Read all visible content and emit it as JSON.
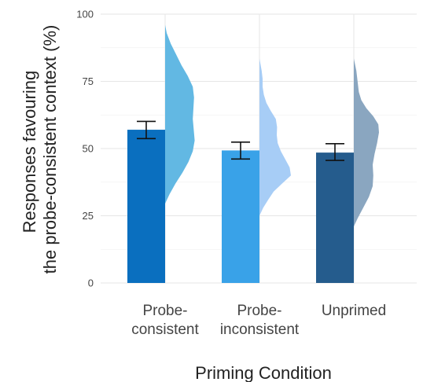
{
  "chart_data": {
    "type": "bar",
    "xlabel": "Priming Condition",
    "ylabel_lines": [
      "Responses favouring",
      "the probe-consistent context (%)"
    ],
    "ylim": [
      0,
      100
    ],
    "yticks": [
      0,
      25,
      50,
      75,
      100
    ],
    "grid": true,
    "categories": [
      {
        "label_lines": [
          "Probe-",
          "consistent"
        ],
        "value": 57,
        "error_low": 53.7,
        "error_high": 60.1,
        "color": "#0a6fbf",
        "dist_color": "#62b8e3",
        "distribution": [
          [
            29.5,
            0
          ],
          [
            33,
            0.14
          ],
          [
            37,
            0.33
          ],
          [
            41,
            0.55
          ],
          [
            45,
            0.74
          ],
          [
            49,
            0.88
          ],
          [
            53,
            0.94
          ],
          [
            57,
            0.91
          ],
          [
            61,
            0.88
          ],
          [
            65,
            0.9
          ],
          [
            69,
            0.92
          ],
          [
            73,
            0.88
          ],
          [
            77,
            0.72
          ],
          [
            81,
            0.52
          ],
          [
            85,
            0.35
          ],
          [
            89,
            0.18
          ],
          [
            93,
            0.05
          ],
          [
            96,
            0
          ]
        ]
      },
      {
        "label_lines": [
          "Probe-",
          "inconsistent"
        ],
        "value": 49.3,
        "error_low": 46.1,
        "error_high": 52.4,
        "color": "#39a2e8",
        "dist_color": "#a7cdf6",
        "distribution": [
          [
            25,
            0
          ],
          [
            28,
            0.12
          ],
          [
            31,
            0.28
          ],
          [
            34,
            0.45
          ],
          [
            37,
            0.72
          ],
          [
            40,
            1.0
          ],
          [
            43,
            0.96
          ],
          [
            46,
            0.82
          ],
          [
            49,
            0.68
          ],
          [
            52,
            0.58
          ],
          [
            55,
            0.55
          ],
          [
            58,
            0.56
          ],
          [
            61,
            0.52
          ],
          [
            64,
            0.36
          ],
          [
            67,
            0.22
          ],
          [
            70,
            0.14
          ],
          [
            73,
            0.1
          ],
          [
            76,
            0.1
          ],
          [
            79,
            0.07
          ],
          [
            83.5,
            0
          ]
        ]
      },
      {
        "label_lines": [
          "Unprimed"
        ],
        "value": 48.5,
        "error_low": 45.6,
        "error_high": 51.8,
        "color": "#255c8d",
        "dist_color": "#8aa6c0",
        "distribution": [
          [
            21,
            0
          ],
          [
            24,
            0.12
          ],
          [
            28,
            0.3
          ],
          [
            32,
            0.48
          ],
          [
            36,
            0.6
          ],
          [
            40,
            0.62
          ],
          [
            44,
            0.6
          ],
          [
            48,
            0.66
          ],
          [
            52,
            0.74
          ],
          [
            56,
            0.8
          ],
          [
            59,
            0.78
          ],
          [
            62,
            0.62
          ],
          [
            65,
            0.4
          ],
          [
            68,
            0.24
          ],
          [
            71,
            0.16
          ],
          [
            75,
            0.12
          ],
          [
            79,
            0.08
          ],
          [
            83.5,
            0
          ]
        ]
      }
    ]
  }
}
